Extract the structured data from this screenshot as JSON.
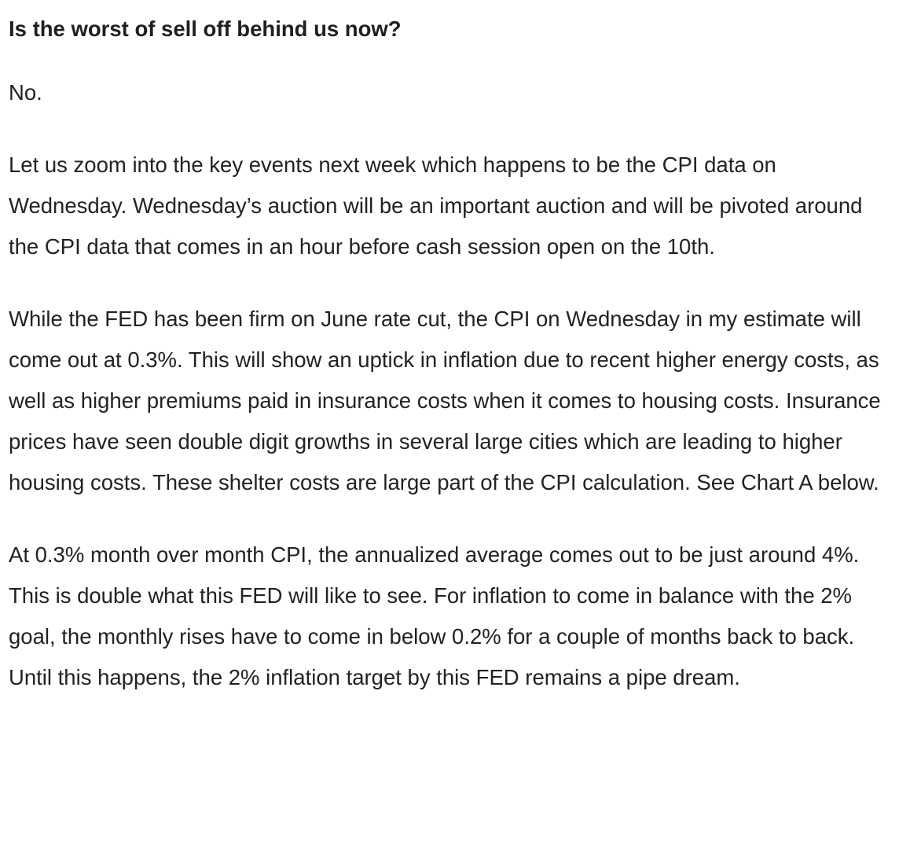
{
  "article": {
    "heading": "Is the worst of sell off behind us now?",
    "paragraphs": [
      "No.",
      "Let us zoom into the key events next week which happens to be the CPI data on Wednesday. Wednesday’s auction will be an important auction and will be pivoted around the CPI data that comes in an hour before cash session open on the 10th.",
      "While the FED has been firm on June rate cut, the CPI on Wednesday in my estimate will come out at 0.3%. This will show an uptick in inflation due to recent higher energy costs, as well as higher premiums paid in insurance costs when it comes to housing costs. Insurance prices have seen double digit growths in several large cities which are leading to higher housing costs. These shelter costs are large part of the CPI calculation. See Chart A below.",
      "At 0.3% month over month CPI, the annualized average comes out to be just around 4%. This is double what this FED will like to see. For inflation to come in balance with the 2% goal, the monthly rises have to come in below 0.2% for a couple of months back to back. Until this happens, the 2% inflation target by this FED remains a pipe dream."
    ]
  }
}
